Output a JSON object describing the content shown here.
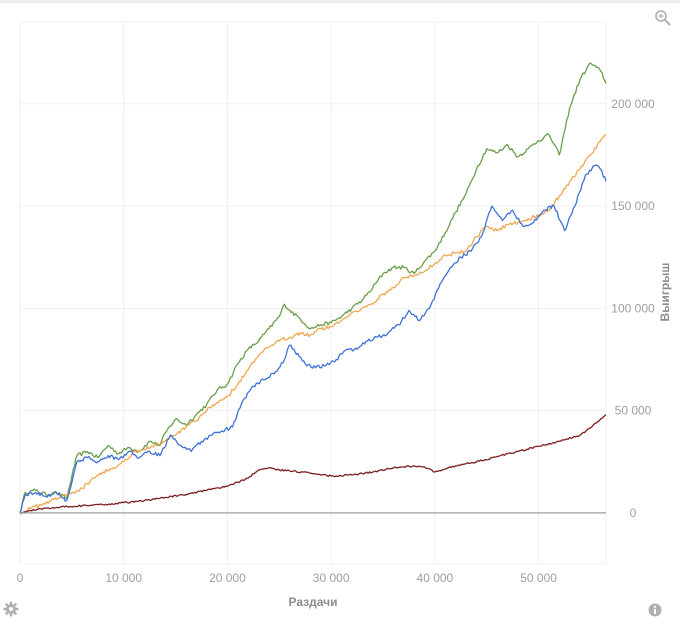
{
  "toolbar": {
    "zoom_icon": "magnifier-icon",
    "settings_icon": "gear-icon",
    "info_icon": "info-icon"
  },
  "chart_data": {
    "type": "line",
    "xlabel": "Раздачи",
    "ylabel": "Выигрыш",
    "xlim": [
      0,
      56500
    ],
    "ylim": [
      -25000,
      240000
    ],
    "x_ticks": [
      0,
      10000,
      20000,
      30000,
      40000,
      50000
    ],
    "x_tick_labels": [
      "0",
      "10 000",
      "20 000",
      "30 000",
      "40 000",
      "50 000"
    ],
    "y_ticks": [
      0,
      50000,
      100000,
      150000,
      200000
    ],
    "y_tick_labels": [
      "0",
      "50 000",
      "100 000",
      "150 000",
      "200 000"
    ],
    "y_axis_position": "right",
    "grid": true,
    "legend": "none",
    "series": [
      {
        "color": "#6a9e4a",
        "x": [
          0,
          500,
          1500,
          2500,
          3500,
          4500,
          5000,
          5500,
          6500,
          7500,
          8500,
          9500,
          10500,
          11500,
          12500,
          13500,
          14000,
          15000,
          16000,
          17000,
          18000,
          19000,
          20000,
          21000,
          22000,
          23000,
          24000,
          25000,
          25500,
          26000,
          27000,
          28000,
          29000,
          30000,
          31000,
          32000,
          33000,
          34000,
          35000,
          36000,
          37000,
          38000,
          39000,
          40000,
          41000,
          42000,
          43000,
          44000,
          45000,
          46000,
          47000,
          48000,
          49000,
          50000,
          51000,
          52000,
          53000,
          54000,
          55000,
          56000,
          56500
        ],
        "y": [
          0,
          10000,
          11000,
          9000,
          10000,
          7000,
          18000,
          28000,
          30000,
          27000,
          33000,
          29000,
          32000,
          30000,
          35000,
          33000,
          39000,
          46000,
          43000,
          48000,
          53000,
          60000,
          63000,
          73000,
          80000,
          84000,
          90000,
          96000,
          102000,
          99000,
          95000,
          90000,
          92000,
          93000,
          96000,
          100000,
          104000,
          110000,
          117000,
          120000,
          120000,
          117000,
          123000,
          128000,
          137000,
          147000,
          156000,
          168000,
          178000,
          176000,
          180000,
          174000,
          178000,
          182000,
          185000,
          175000,
          198000,
          212000,
          220000,
          216000,
          210000
        ]
      },
      {
        "color": "#f0a752",
        "x": [
          0,
          1000,
          2000,
          3000,
          4000,
          5000,
          6000,
          7000,
          8000,
          9000,
          10000,
          11000,
          12000,
          13000,
          14000,
          15000,
          16000,
          17000,
          18000,
          19000,
          20000,
          21000,
          22000,
          23000,
          24000,
          25000,
          26000,
          27000,
          28000,
          29000,
          30000,
          31000,
          32000,
          33000,
          34000,
          35000,
          36000,
          37000,
          38000,
          39000,
          40000,
          41000,
          42000,
          43000,
          44000,
          45000,
          46000,
          47000,
          48000,
          49000,
          50000,
          51000,
          52000,
          53000,
          54000,
          55000,
          56000,
          56500
        ],
        "y": [
          0,
          2000,
          4000,
          6000,
          8000,
          10000,
          12000,
          17000,
          20000,
          22000,
          25000,
          30000,
          31000,
          33000,
          35000,
          38000,
          42000,
          45000,
          50000,
          54000,
          57000,
          63000,
          70000,
          77000,
          81000,
          84000,
          86000,
          88000,
          87000,
          90000,
          91000,
          94000,
          98000,
          100000,
          102000,
          107000,
          110000,
          115000,
          116000,
          118000,
          122000,
          126000,
          127000,
          128000,
          135000,
          140000,
          138000,
          141000,
          142000,
          144000,
          145000,
          148000,
          155000,
          162000,
          168000,
          175000,
          182000,
          185000
        ]
      },
      {
        "color": "#3f72d6",
        "x": [
          0,
          500,
          1500,
          2500,
          3500,
          4500,
          5000,
          5500,
          6500,
          7500,
          8500,
          9500,
          10500,
          11500,
          12500,
          13500,
          14500,
          15500,
          16500,
          17500,
          18500,
          19500,
          20500,
          21500,
          22500,
          23500,
          24500,
          25500,
          26000,
          26500,
          27500,
          28500,
          29500,
          30500,
          31500,
          32500,
          33500,
          34500,
          35500,
          36500,
          37500,
          38500,
          39500,
          40500,
          41500,
          42500,
          43500,
          44500,
          45500,
          46500,
          47500,
          48500,
          49500,
          50500,
          51500,
          52500,
          53500,
          54500,
          55500,
          56000,
          56500
        ],
        "y": [
          0,
          9000,
          10000,
          8000,
          10000,
          6000,
          15000,
          25000,
          27000,
          25000,
          28000,
          26000,
          30000,
          27000,
          30000,
          28000,
          38000,
          33000,
          30000,
          35000,
          38000,
          40000,
          42000,
          55000,
          62000,
          65000,
          68000,
          75000,
          82000,
          79000,
          73000,
          71000,
          72000,
          75000,
          80000,
          80000,
          84000,
          86000,
          88000,
          92000,
          99000,
          94000,
          100000,
          112000,
          120000,
          125000,
          128000,
          135000,
          150000,
          143000,
          148000,
          140000,
          142000,
          148000,
          150000,
          138000,
          150000,
          165000,
          170000,
          168000,
          162000
        ]
      },
      {
        "color": "#7b1f1f",
        "x": [
          0,
          2000,
          4000,
          6000,
          8000,
          10000,
          12000,
          14000,
          16000,
          18000,
          20000,
          21000,
          22000,
          23000,
          24000,
          25000,
          26000,
          28000,
          30000,
          32000,
          34000,
          36000,
          38000,
          39000,
          40000,
          41000,
          42000,
          44000,
          46000,
          48000,
          50000,
          52000,
          54000,
          55000,
          56000,
          56500
        ],
        "y": [
          0,
          2000,
          3000,
          3500,
          4000,
          5000,
          6000,
          7500,
          9000,
          11000,
          13000,
          15000,
          17000,
          21000,
          22000,
          21000,
          20500,
          19500,
          18000,
          18500,
          20000,
          22000,
          23000,
          22500,
          20000,
          21500,
          23000,
          25000,
          27500,
          30000,
          32500,
          35000,
          38000,
          41500,
          46000,
          48000
        ]
      },
      {
        "color": "#9e9e9e",
        "x": [
          0,
          56500
        ],
        "y": [
          0,
          0
        ]
      }
    ]
  }
}
